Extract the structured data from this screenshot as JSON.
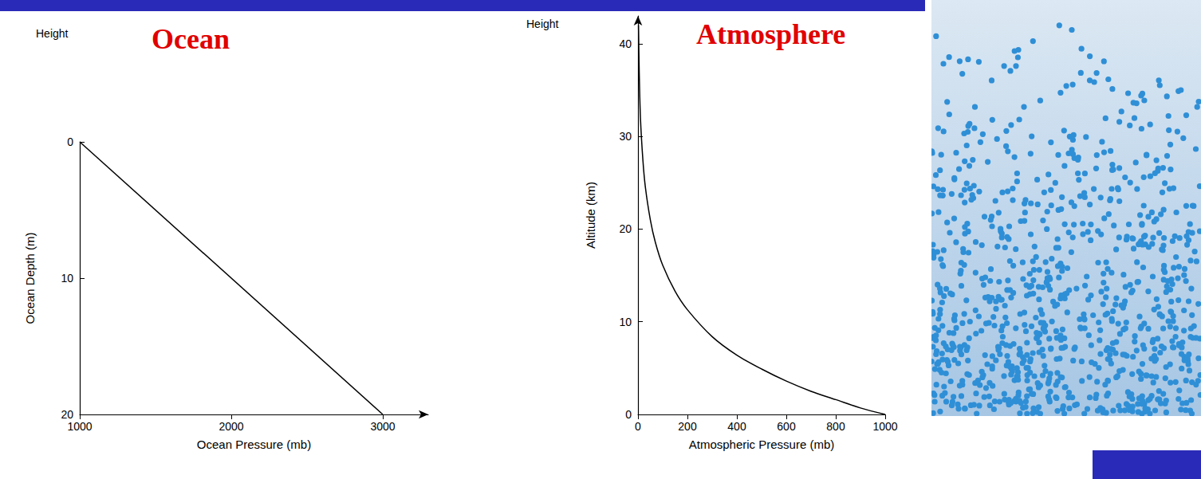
{
  "chart_data": [
    {
      "type": "line",
      "title": "Ocean",
      "annotation": "Height",
      "x_label": "Ocean Pressure (mb)",
      "y_label": "Ocean Depth (m)",
      "x": [
        1000,
        3000
      ],
      "values": [
        0,
        20
      ],
      "color": "#000000",
      "xlim": [
        1000,
        3300
      ],
      "ylim": [
        20,
        0
      ],
      "xticks": [
        1000,
        2000,
        3000
      ],
      "yticks": [
        0,
        10,
        20
      ],
      "grid": false
    },
    {
      "type": "line",
      "title": "Atmosphere",
      "annotation": "Height",
      "x_label": "Atmospheric Pressure (mb)",
      "y_label": "Altitude (km)",
      "x": [
        1000,
        900,
        800,
        700,
        600,
        500,
        400,
        300,
        200,
        150,
        100,
        70,
        50,
        30,
        20,
        10,
        5,
        2
      ],
      "values": [
        0,
        0.7,
        1.6,
        2.5,
        3.6,
        4.9,
        6.4,
        8.4,
        11.3,
        13.3,
        16.1,
        18.6,
        21,
        24.5,
        27.4,
        32,
        37,
        42
      ],
      "color": "#000000",
      "xlim": [
        0,
        1000
      ],
      "ylim": [
        0,
        43
      ],
      "xticks": [
        0,
        200,
        400,
        600,
        800,
        1000
      ],
      "yticks": [
        0,
        10,
        20,
        30,
        40
      ],
      "grid": false
    }
  ]
}
